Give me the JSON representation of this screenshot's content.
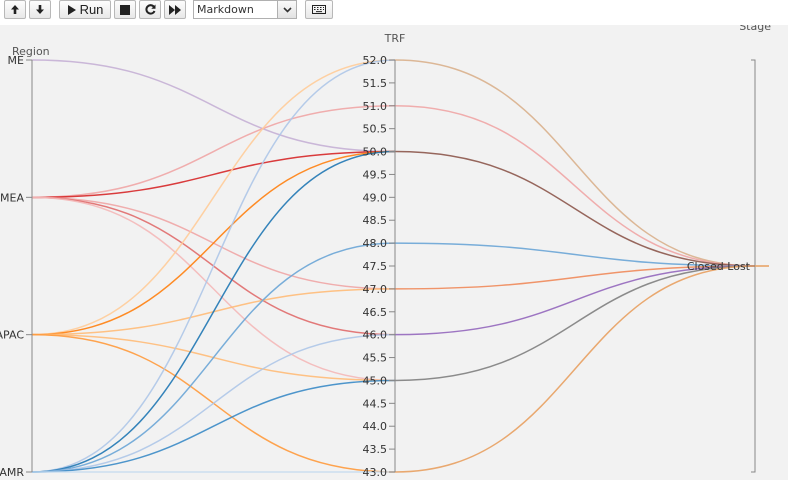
{
  "toolbar": {
    "run_label": "Run",
    "cell_type_value": "Markdown",
    "icons": [
      "arrow-up-icon",
      "arrow-down-icon",
      "play-icon",
      "stop-icon",
      "restart-icon",
      "fast-forward-icon",
      "chevron-down-icon",
      "keyboard-icon"
    ]
  },
  "chart_data": {
    "type": "parallel_coordinates",
    "axes": [
      {
        "name": "Region",
        "type": "categorical",
        "categories": [
          "ME",
          "EMEA",
          "APAC",
          "AMR"
        ]
      },
      {
        "name": "TRF",
        "type": "numeric",
        "ylim": [
          43.0,
          52.0
        ],
        "ticks": [
          "52.0",
          "51.5",
          "51.0",
          "50.5",
          "50.0",
          "49.5",
          "49.0",
          "48.5",
          "48.0",
          "47.5",
          "47.0",
          "46.5",
          "46.0",
          "45.5",
          "45.0",
          "44.5",
          "44.0",
          "43.5",
          "43.0"
        ]
      },
      {
        "name": "Stage",
        "type": "categorical",
        "categories": [
          "Closed Lost"
        ]
      }
    ],
    "records": [
      {
        "region": "ME",
        "trf": 50.0,
        "stage": "Closed Lost",
        "color": "#c5b0d5"
      },
      {
        "region": "EMEA",
        "trf": 51.0,
        "stage": "Closed Lost",
        "color": "#f0a5a5"
      },
      {
        "region": "EMEA",
        "trf": 50.0,
        "stage": "Closed Lost",
        "color": "#d62728"
      },
      {
        "region": "EMEA",
        "trf": 47.0,
        "stage": "Closed Lost",
        "color": "#f0a5a5"
      },
      {
        "region": "EMEA",
        "trf": 46.0,
        "stage": "Closed Lost",
        "color": "#e06c6c"
      },
      {
        "region": "EMEA",
        "trf": 45.0,
        "stage": "Closed Lost",
        "color": "#f4b8b8"
      },
      {
        "region": "APAC",
        "trf": 52.0,
        "stage": "Closed Lost",
        "color": "#ffcc99"
      },
      {
        "region": "APAC",
        "trf": 50.0,
        "stage": "Closed Lost",
        "color": "#ff7f0e"
      },
      {
        "region": "APAC",
        "trf": 47.0,
        "stage": "Closed Lost",
        "color": "#ffbb78"
      },
      {
        "region": "APAC",
        "trf": 45.0,
        "stage": "Closed Lost",
        "color": "#ffbb78"
      },
      {
        "region": "APAC",
        "trf": 43.0,
        "stage": "Closed Lost",
        "color": "#ff9a3c"
      },
      {
        "region": "AMR",
        "trf": 52.0,
        "stage": "Closed Lost",
        "color": "#aec7e8"
      },
      {
        "region": "AMR",
        "trf": 50.0,
        "stage": "Closed Lost",
        "color": "#1f77b4"
      },
      {
        "region": "AMR",
        "trf": 48.0,
        "stage": "Closed Lost",
        "color": "#6aa5d6"
      },
      {
        "region": "AMR",
        "trf": 46.0,
        "stage": "Closed Lost",
        "color": "#aec7e8"
      },
      {
        "region": "AMR",
        "trf": 45.0,
        "stage": "Closed Lost",
        "color": "#3b8bc6"
      },
      {
        "region": "AMR",
        "trf": 43.0,
        "stage": "Closed Lost",
        "color": "#c6dbef"
      }
    ],
    "right_segments": [
      {
        "trf": 52.0,
        "color": "#d9b08c"
      },
      {
        "trf": 51.0,
        "color": "#f0a5a5"
      },
      {
        "trf": 50.0,
        "color": "#8c564b"
      },
      {
        "trf": 48.0,
        "color": "#6aa5d6"
      },
      {
        "trf": 47.0,
        "color": "#f08a5a"
      },
      {
        "trf": 46.0,
        "color": "#9467bd"
      },
      {
        "trf": 45.0,
        "color": "#7f7f7f"
      },
      {
        "trf": 43.0,
        "color": "#e8a060"
      }
    ]
  }
}
